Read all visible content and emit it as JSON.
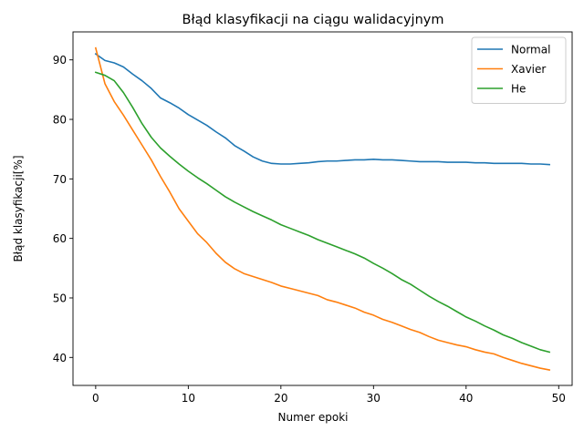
{
  "chart_data": {
    "type": "line",
    "title": "Błąd klasyfikacji na ciągu walidacyjnym",
    "xlabel": "Numer epoki",
    "ylabel": "Błąd klasyfikacji[%]",
    "xlim": [
      -2.45,
      51.45
    ],
    "ylim": [
      35.3,
      94.7
    ],
    "x_ticks": [
      0,
      10,
      20,
      30,
      40,
      50
    ],
    "y_ticks": [
      40,
      50,
      60,
      70,
      80,
      90
    ],
    "grid": false,
    "legend": "top-right",
    "x": [
      0,
      1,
      2,
      3,
      4,
      5,
      6,
      7,
      8,
      9,
      10,
      11,
      12,
      13,
      14,
      15,
      16,
      17,
      18,
      19,
      20,
      21,
      22,
      23,
      24,
      25,
      26,
      27,
      28,
      29,
      30,
      31,
      32,
      33,
      34,
      35,
      36,
      37,
      38,
      39,
      40,
      41,
      42,
      43,
      44,
      45,
      46,
      47,
      48,
      49
    ],
    "series": [
      {
        "name": "Normal",
        "color": "#1f77b4",
        "values": [
          91.0,
          89.9,
          89.5,
          88.8,
          87.6,
          86.5,
          85.2,
          83.6,
          82.8,
          81.9,
          80.8,
          79.9,
          79.0,
          77.9,
          76.9,
          75.6,
          74.7,
          73.7,
          73.0,
          72.6,
          72.5,
          72.5,
          72.6,
          72.7,
          72.9,
          73.0,
          73.0,
          73.1,
          73.2,
          73.2,
          73.3,
          73.2,
          73.2,
          73.1,
          73.0,
          72.9,
          72.9,
          72.9,
          72.8,
          72.8,
          72.8,
          72.7,
          72.7,
          72.6,
          72.6,
          72.6,
          72.6,
          72.5,
          72.5,
          72.4
        ]
      },
      {
        "name": "Xavier",
        "color": "#ff7f0e",
        "values": [
          92.0,
          86.0,
          83.0,
          80.7,
          78.2,
          75.7,
          73.2,
          70.4,
          67.8,
          65.0,
          62.9,
          60.8,
          59.3,
          57.5,
          56.0,
          54.9,
          54.1,
          53.6,
          53.1,
          52.6,
          52.0,
          51.6,
          51.2,
          50.8,
          50.4,
          49.7,
          49.3,
          48.8,
          48.3,
          47.6,
          47.1,
          46.4,
          45.9,
          45.3,
          44.7,
          44.2,
          43.5,
          42.9,
          42.5,
          42.1,
          41.8,
          41.3,
          40.9,
          40.6,
          40.0,
          39.5,
          39.0,
          38.6,
          38.2,
          37.9
        ]
      },
      {
        "name": "He",
        "color": "#2ca02c",
        "values": [
          87.9,
          87.4,
          86.5,
          84.5,
          82.0,
          79.3,
          77.0,
          75.2,
          73.8,
          72.5,
          71.3,
          70.2,
          69.2,
          68.1,
          67.0,
          66.1,
          65.3,
          64.5,
          63.8,
          63.1,
          62.3,
          61.7,
          61.1,
          60.5,
          59.8,
          59.2,
          58.6,
          58.0,
          57.4,
          56.7,
          55.8,
          55.0,
          54.1,
          53.1,
          52.3,
          51.3,
          50.3,
          49.4,
          48.6,
          47.7,
          46.8,
          46.1,
          45.3,
          44.6,
          43.8,
          43.2,
          42.5,
          41.9,
          41.3,
          40.9
        ]
      }
    ]
  }
}
